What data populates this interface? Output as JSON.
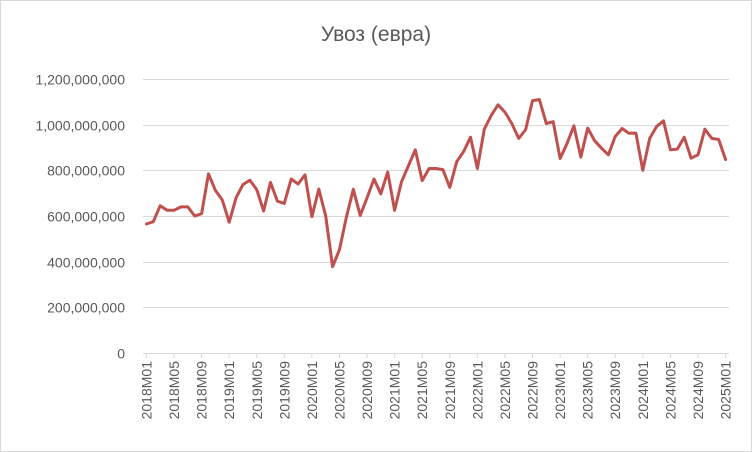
{
  "chart_data": {
    "type": "line",
    "title": "Увоз (евра)",
    "xlabel": "",
    "ylabel": "",
    "ylim": [
      0,
      1200000000
    ],
    "yticks": [
      {
        "value": 0,
        "label": "0"
      },
      {
        "value": 200000000,
        "label": "200,000,000"
      },
      {
        "value": 400000000,
        "label": "400,000,000"
      },
      {
        "value": 600000000,
        "label": "600,000,000"
      },
      {
        "value": 800000000,
        "label": "800,000,000"
      },
      {
        "value": 1000000000,
        "label": "1,000,000,000"
      },
      {
        "value": 1200000000,
        "label": "1,200,000,000"
      }
    ],
    "xtick_labels": [
      "2018M01",
      "2018M05",
      "2018M09",
      "2019M01",
      "2019M05",
      "2019M09",
      "2020M01",
      "2020M05",
      "2020M09",
      "2021M01",
      "2021M05",
      "2021M09",
      "2022M01",
      "2022M05",
      "2022M09",
      "2023M01",
      "2023M05",
      "2023M09",
      "2024M01",
      "2024M05",
      "2024M09",
      "2025M01"
    ],
    "grid": true,
    "legend": "none",
    "line_color": "#c0504d",
    "series": [
      {
        "x": [
          "2018M01",
          "2018M02",
          "2018M03",
          "2018M04",
          "2018M05",
          "2018M06",
          "2018M07",
          "2018M08",
          "2018M09",
          "2018M10",
          "2018M11",
          "2018M12",
          "2019M01",
          "2019M02",
          "2019M03",
          "2019M04",
          "2019M05",
          "2019M06",
          "2019M07",
          "2019M08",
          "2019M09",
          "2019M10",
          "2019M11",
          "2019M12",
          "2020M01",
          "2020M02",
          "2020M03",
          "2020M04",
          "2020M05",
          "2020M06",
          "2020M07",
          "2020M08",
          "2020M09",
          "2020M10",
          "2020M11",
          "2020M12",
          "2021M01",
          "2021M02",
          "2021M03",
          "2021M04",
          "2021M05",
          "2021M06",
          "2021M07",
          "2021M08",
          "2021M09",
          "2021M10",
          "2021M11",
          "2021M12",
          "2022M01",
          "2022M02",
          "2022M03",
          "2022M04",
          "2022M05",
          "2022M06",
          "2022M07",
          "2022M08",
          "2022M09",
          "2022M10",
          "2022M11",
          "2022M12",
          "2023M01",
          "2023M02",
          "2023M03",
          "2023M04",
          "2023M05",
          "2023M06",
          "2023M07",
          "2023M08",
          "2023M09",
          "2023M10",
          "2023M11",
          "2023M12",
          "2024M01",
          "2024M02",
          "2024M03",
          "2024M04",
          "2024M05",
          "2024M06",
          "2024M07",
          "2024M08",
          "2024M09",
          "2024M10",
          "2024M11",
          "2024M12",
          "2025M01"
        ],
        "values": [
          565000000,
          575000000,
          645000000,
          625000000,
          625000000,
          640000000,
          640000000,
          600000000,
          610000000,
          785000000,
          712000000,
          670000000,
          573000000,
          680000000,
          738000000,
          757000000,
          715000000,
          622000000,
          747000000,
          665000000,
          655000000,
          762000000,
          740000000,
          780000000,
          597000000,
          718000000,
          600000000,
          378000000,
          453000000,
          595000000,
          717000000,
          602000000,
          680000000,
          762000000,
          697000000,
          793000000,
          625000000,
          750000000,
          820000000,
          890000000,
          755000000,
          808000000,
          808000000,
          803000000,
          725000000,
          838000000,
          882000000,
          945000000,
          808000000,
          980000000,
          1040000000,
          1087000000,
          1055000000,
          1005000000,
          940000000,
          978000000,
          1105000000,
          1110000000,
          1005000000,
          1013000000,
          852000000,
          917000000,
          995000000,
          858000000,
          985000000,
          930000000,
          897000000,
          868000000,
          948000000,
          983000000,
          962000000,
          963000000,
          800000000,
          940000000,
          992000000,
          1017000000,
          890000000,
          893000000,
          945000000,
          853000000,
          868000000,
          980000000,
          940000000,
          935000000,
          847000000
        ]
      }
    ]
  }
}
